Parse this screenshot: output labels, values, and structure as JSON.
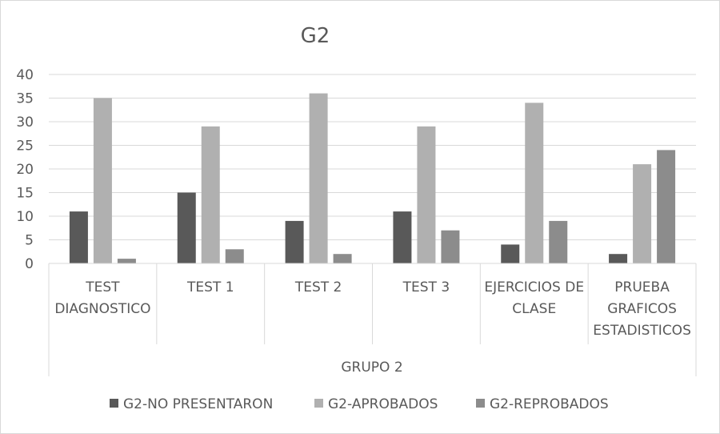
{
  "chart_data": {
    "type": "bar",
    "title": "G2",
    "group_label": "GRUPO 2",
    "categories": [
      [
        "TEST",
        "DIAGNOSTICO"
      ],
      [
        "TEST 1"
      ],
      [
        "TEST 2"
      ],
      [
        "TEST 3"
      ],
      [
        "EJERCICIOS DE",
        "CLASE"
      ],
      [
        "PRUEBA",
        "GRAFICOS",
        "ESTADISTICOS"
      ]
    ],
    "series": [
      {
        "name": "G2-NO PRESENTARON",
        "color": "#595959",
        "values": [
          11,
          15,
          9,
          11,
          4,
          2
        ]
      },
      {
        "name": "G2-APROBADOS",
        "color": "#b0b0b0",
        "values": [
          35,
          29,
          36,
          29,
          34,
          21
        ]
      },
      {
        "name": "G2-REPROBADOS",
        "color": "#8c8c8c",
        "values": [
          1,
          3,
          2,
          7,
          9,
          24
        ]
      }
    ],
    "ylim": [
      0,
      40
    ],
    "yticks": [
      0,
      5,
      10,
      15,
      20,
      25,
      30,
      35,
      40
    ],
    "grid": true,
    "legend": "bottom"
  }
}
